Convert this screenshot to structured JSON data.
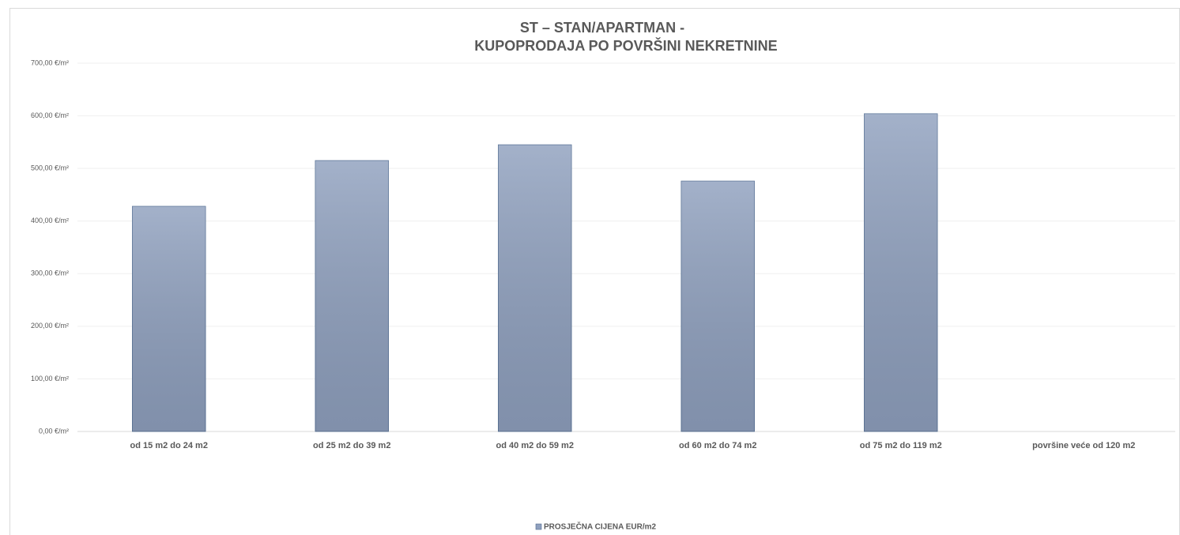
{
  "chart_data": {
    "type": "bar",
    "title": [
      "ST – STAN/APARTMAN -",
      "KUPOPRODAJA PO POVRŠINI NEKRETNINE"
    ],
    "categories": [
      "od 15 m2 do 24 m2",
      "od 25 m2 do 39 m2",
      "od 40 m2 do 59 m2",
      "od 60 m2 do 74 m2",
      "od 75 m2 do 119 m2",
      "površine veće od 120 m2"
    ],
    "series": [
      {
        "name": "PROSJEČNA CIJENA EUR/m2",
        "color": "#8fa0be",
        "values": [
          428,
          515,
          545,
          476,
          604,
          null
        ]
      }
    ],
    "ylim": [
      0,
      700
    ],
    "yticks": [
      {
        "value": 0,
        "label": "0,00 €/m²"
      },
      {
        "value": 100,
        "label": "100,00 €/m²"
      },
      {
        "value": 200,
        "label": "200,00 €/m²"
      },
      {
        "value": 300,
        "label": "300,00 €/m²"
      },
      {
        "value": 400,
        "label": "400,00 €/m²"
      },
      {
        "value": 500,
        "label": "500,00 €/m²"
      },
      {
        "value": 600,
        "label": "600,00 €/m²"
      },
      {
        "value": 700,
        "label": "700,00 €/m²"
      }
    ],
    "grid": true,
    "legend": "bottom"
  }
}
